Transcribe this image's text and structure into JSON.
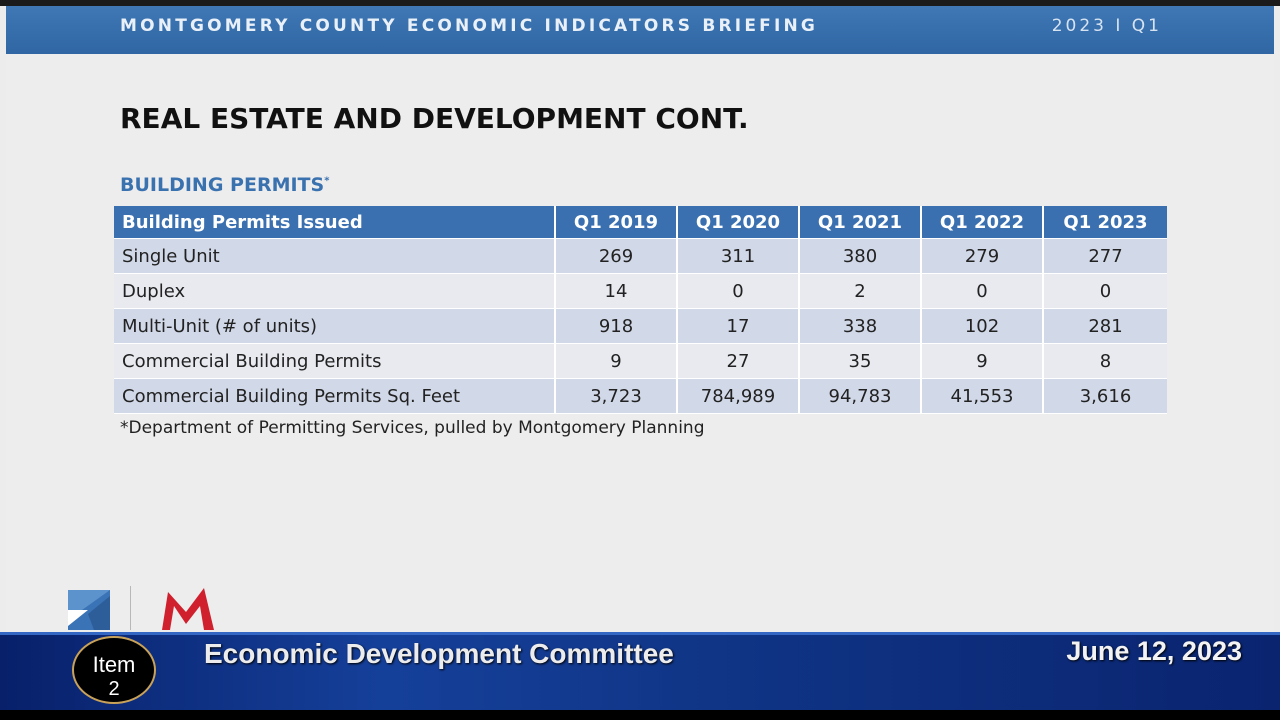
{
  "header": {
    "title": "MONTGOMERY COUNTY ECONOMIC INDICATORS BRIEFING",
    "period": "2023 I Q1"
  },
  "slide": {
    "title": "REAL ESTATE AND DEVELOPMENT CONT.",
    "section_title": "BUILDING PERMITS",
    "section_marker": "*",
    "table": {
      "header_label": "Building Permits Issued",
      "columns": [
        "Q1 2019",
        "Q1 2020",
        "Q1 2021",
        "Q1 2022",
        "Q1 2023"
      ],
      "rows": [
        {
          "label": "Single Unit",
          "values": [
            "269",
            "311",
            "380",
            "279",
            "277"
          ]
        },
        {
          "label": "Duplex",
          "values": [
            "14",
            "0",
            "2",
            "0",
            "0"
          ]
        },
        {
          "label": "Multi-Unit (# of units)",
          "values": [
            "918",
            "17",
            "338",
            "102",
            "281"
          ]
        },
        {
          "label": "Commercial Building Permits",
          "values": [
            "9",
            "27",
            "35",
            "9",
            "8"
          ]
        },
        {
          "label": "Commercial Building Permits Sq. Feet",
          "values": [
            "3,723",
            "784,989",
            "94,783",
            "41,553",
            "3,616"
          ]
        }
      ]
    },
    "footnote": "*Department of Permitting Services, pulled by Montgomery Planning"
  },
  "banner": {
    "item_label": "Item",
    "item_number": "2",
    "title": "Economic Development Committee",
    "date": "June 12, 2023"
  },
  "colors": {
    "header_blue": "#3a70b0",
    "banner_blue": "#15409a",
    "logo_red": "#d0202e"
  }
}
